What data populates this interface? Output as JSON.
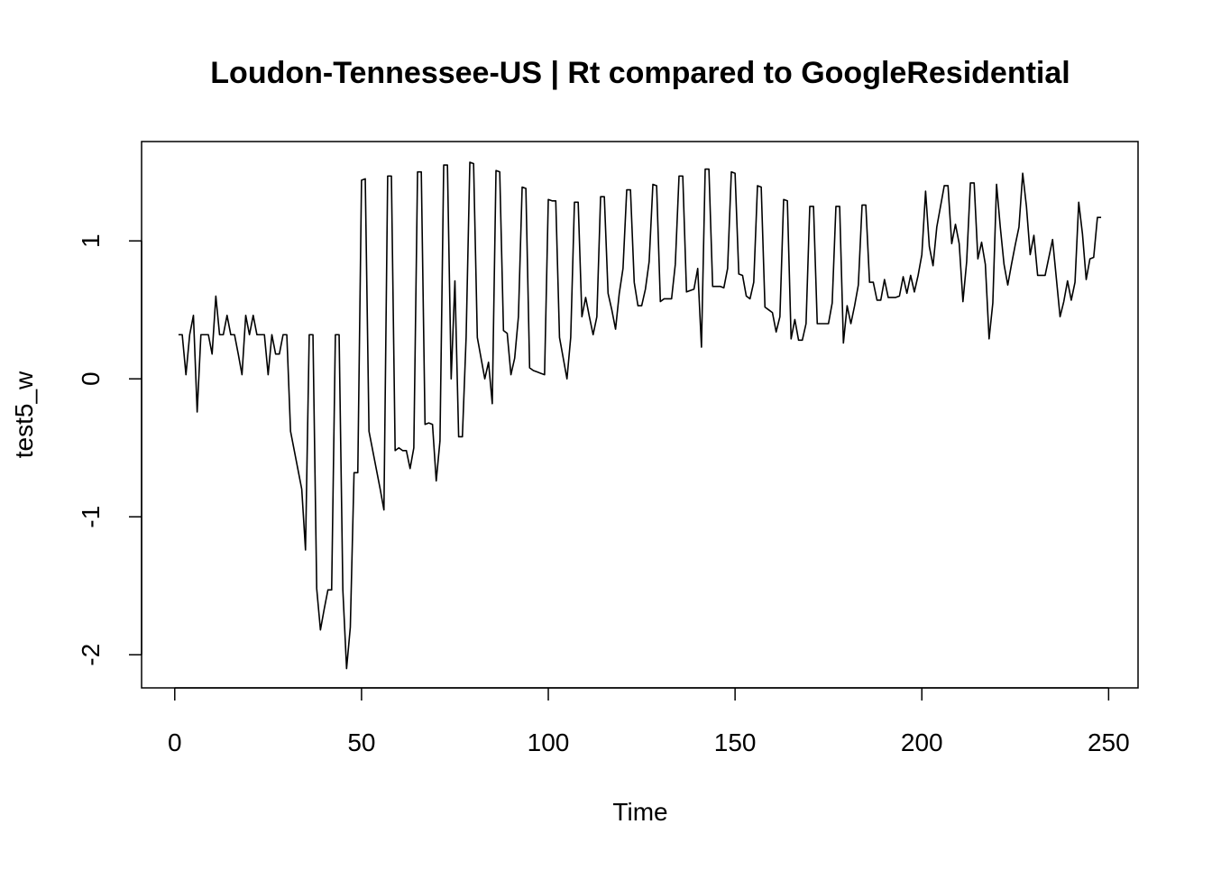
{
  "chart_data": {
    "type": "line",
    "title": "Loudon-Tennessee-US | Rt compared to GoogleResidential",
    "xlabel": "Time",
    "ylabel": "test5_w",
    "color": "#000000",
    "x": [
      1,
      2,
      3,
      4,
      5,
      6,
      7,
      8,
      9,
      10,
      11,
      12,
      13,
      14,
      15,
      16,
      17,
      18,
      19,
      20,
      21,
      22,
      23,
      24,
      25,
      26,
      27,
      28,
      29,
      30,
      31,
      32,
      33,
      34,
      35,
      36,
      37,
      38,
      39,
      40,
      41,
      42,
      43,
      44,
      45,
      46,
      47,
      48,
      49,
      50,
      51,
      52,
      53,
      54,
      55,
      56,
      57,
      58,
      59,
      60,
      61,
      62,
      63,
      64,
      65,
      66,
      67,
      68,
      69,
      70,
      71,
      72,
      73,
      74,
      75,
      76,
      77,
      78,
      79,
      80,
      81,
      82,
      83,
      84,
      85,
      86,
      87,
      88,
      89,
      90,
      91,
      92,
      93,
      94,
      95,
      96,
      97,
      98,
      99,
      100,
      101,
      102,
      103,
      104,
      105,
      106,
      107,
      108,
      109,
      110,
      111,
      112,
      113,
      114,
      115,
      116,
      117,
      118,
      119,
      120,
      121,
      122,
      123,
      124,
      125,
      126,
      127,
      128,
      129,
      130,
      131,
      132,
      133,
      134,
      135,
      136,
      137,
      138,
      139,
      140,
      141,
      142,
      143,
      144,
      145,
      146,
      147,
      148,
      149,
      150,
      151,
      152,
      153,
      154,
      155,
      156,
      157,
      158,
      159,
      160,
      161,
      162,
      163,
      164,
      165,
      166,
      167,
      168,
      169,
      170,
      171,
      172,
      173,
      174,
      175,
      176,
      177,
      178,
      179,
      180,
      181,
      182,
      183,
      184,
      185,
      186,
      187,
      188,
      189,
      190,
      191,
      192,
      193,
      194,
      195,
      196,
      197,
      198,
      199,
      200,
      201,
      202,
      203,
      204,
      205,
      206,
      207,
      208,
      209,
      210,
      211,
      212,
      213,
      214,
      215,
      216,
      217,
      218,
      219,
      220,
      221,
      222,
      223,
      224,
      225,
      226,
      227,
      228,
      229,
      230,
      231,
      232,
      233,
      234,
      235,
      236,
      237,
      238,
      239,
      240,
      241,
      242,
      243,
      244,
      245,
      246,
      247,
      248
    ],
    "values": [
      0.32,
      0.32,
      0.03,
      0.32,
      0.46,
      -0.24,
      0.32,
      0.32,
      0.32,
      0.18,
      0.6,
      0.32,
      0.32,
      0.46,
      0.32,
      0.32,
      0.18,
      0.03,
      0.46,
      0.32,
      0.46,
      0.32,
      0.32,
      0.32,
      0.03,
      0.32,
      0.18,
      0.18,
      0.32,
      0.32,
      -0.38,
      -0.52,
      -0.66,
      -0.8,
      -1.24,
      0.32,
      0.32,
      -1.52,
      -1.82,
      -1.67,
      -1.53,
      -1.53,
      0.32,
      0.32,
      -1.53,
      -2.1,
      -1.8,
      -0.68,
      -0.68,
      1.44,
      1.45,
      -0.38,
      -0.52,
      -0.66,
      -0.8,
      -0.95,
      1.47,
      1.47,
      -0.52,
      -0.5,
      -0.52,
      -0.52,
      -0.65,
      -0.5,
      1.5,
      1.5,
      -0.33,
      -0.32,
      -0.33,
      -0.74,
      -0.45,
      1.55,
      1.55,
      0,
      0.71,
      -0.42,
      -0.42,
      0.3,
      1.57,
      1.56,
      0.3,
      0.15,
      0,
      0.12,
      -0.18,
      1.51,
      1.5,
      0.35,
      0.33,
      0.03,
      0.15,
      0.45,
      1.39,
      1.38,
      0.08,
      0.06,
      0.05,
      0.04,
      0.03,
      1.3,
      1.29,
      1.29,
      0.3,
      0.15,
      0,
      0.3,
      1.28,
      1.28,
      0.45,
      0.59,
      0.45,
      0.32,
      0.45,
      1.32,
      1.32,
      0.62,
      0.5,
      0.36,
      0.62,
      0.8,
      1.37,
      1.37,
      0.7,
      0.53,
      0.53,
      0.65,
      0.85,
      1.41,
      1.4,
      0.56,
      0.58,
      0.58,
      0.58,
      0.83,
      1.47,
      1.47,
      0.63,
      0.64,
      0.65,
      0.8,
      0.23,
      1.52,
      1.52,
      0.67,
      0.67,
      0.67,
      0.66,
      0.8,
      1.5,
      1.49,
      0.76,
      0.75,
      0.6,
      0.58,
      0.7,
      1.4,
      1.39,
      0.52,
      0.5,
      0.48,
      0.34,
      0.45,
      1.3,
      1.29,
      0.29,
      0.43,
      0.28,
      0.28,
      0.4,
      1.25,
      1.25,
      0.4,
      0.4,
      0.4,
      0.4,
      0.55,
      1.25,
      1.25,
      0.26,
      0.53,
      0.4,
      0.53,
      0.68,
      1.26,
      1.26,
      0.7,
      0.7,
      0.57,
      0.57,
      0.72,
      0.59,
      0.59,
      0.59,
      0.6,
      0.74,
      0.62,
      0.75,
      0.63,
      0.75,
      0.9,
      1.36,
      0.96,
      0.82,
      1.1,
      1.25,
      1.4,
      1.4,
      0.98,
      1.12,
      0.98,
      0.56,
      0.85,
      1.42,
      1.42,
      0.87,
      0.99,
      0.83,
      0.29,
      0.55,
      1.41,
      1.1,
      0.83,
      0.68,
      0.83,
      0.97,
      1.1,
      1.49,
      1.25,
      0.9,
      1.04,
      0.75,
      0.75,
      0.75,
      0.88,
      1.01,
      0.73,
      0.45,
      0.56,
      0.71,
      0.57,
      0.7,
      1.28,
      1.05,
      0.72,
      0.87,
      0.88,
      1.17,
      1.17
    ],
    "xlim": [
      -8.88,
      257.88
    ],
    "xticks": [
      0,
      50,
      100,
      150,
      200,
      250
    ],
    "ylim": [
      -2.24,
      1.72
    ],
    "yticks": [
      -2,
      -1,
      0,
      1
    ]
  }
}
